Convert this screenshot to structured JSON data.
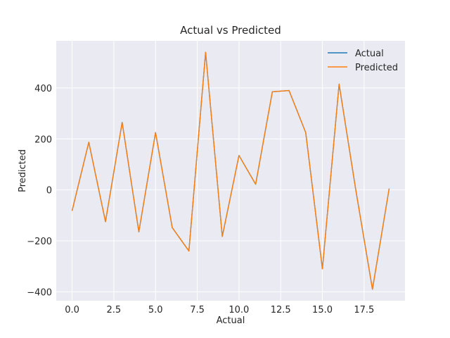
{
  "chart_data": {
    "type": "line",
    "title": "Actual vs Predicted",
    "xlabel": "Actual",
    "ylabel": "Predicted",
    "xlim": [
      -0.95,
      19.95
    ],
    "ylim": [
      -435,
      585
    ],
    "x": [
      0,
      1,
      2,
      3,
      4,
      5,
      6,
      7,
      8,
      9,
      10,
      11,
      12,
      13,
      14,
      15,
      16,
      17,
      18,
      19
    ],
    "x_ticks": [
      0.0,
      2.5,
      5.0,
      7.5,
      10.0,
      12.5,
      15.0,
      17.5
    ],
    "x_tick_labels": [
      "0.0",
      "2.5",
      "5.0",
      "7.5",
      "10.0",
      "12.5",
      "15.0",
      "17.5"
    ],
    "y_ticks": [
      -400,
      -200,
      0,
      200,
      400
    ],
    "y_tick_labels": [
      "−400",
      "−200",
      "0",
      "200",
      "400"
    ],
    "grid": true,
    "legend_position": "top-right",
    "series": [
      {
        "name": "Actual",
        "color": "#1f77b4",
        "values": [
          -82,
          187,
          -125,
          265,
          -165,
          225,
          -148,
          -240,
          540,
          -183,
          135,
          22,
          385,
          390,
          225,
          -310,
          415,
          0,
          -390,
          5
        ]
      },
      {
        "name": "Predicted",
        "color": "#ff7f0e",
        "values": [
          -82,
          187,
          -125,
          265,
          -165,
          225,
          -148,
          -240,
          540,
          -183,
          135,
          22,
          385,
          390,
          225,
          -310,
          415,
          0,
          -390,
          5
        ]
      }
    ]
  }
}
